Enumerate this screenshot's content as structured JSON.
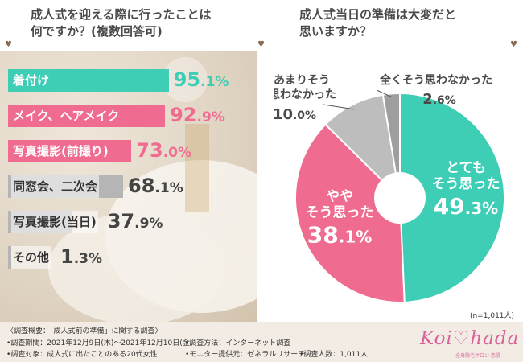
{
  "left_title": "成人式を迎える際に行ったことは\n何ですか？(複数回答可)",
  "right_title": "成人式当日の準備は大変だと\n思いますか？",
  "sample": "(n=1,011人)",
  "chart_data": [
    {
      "type": "bar",
      "orientation": "horizontal",
      "title": "成人式を迎える際に行ったことは何ですか？(複数回答可)",
      "categories": [
        "着付け",
        "メイク、ヘアメイク",
        "写真撮影(前撮り)",
        "同窓会、二次会",
        "写真撮影(当日)",
        "その他"
      ],
      "values": [
        95.1,
        92.9,
        73.0,
        68.1,
        37.9,
        1.3
      ],
      "value_labels": [
        [
          "95",
          ".1%"
        ],
        [
          "92",
          ".9%"
        ],
        [
          "73",
          ".0%"
        ],
        [
          "68",
          ".1%"
        ],
        [
          "37",
          ".9%"
        ],
        [
          "1",
          ".3%"
        ]
      ],
      "colors": [
        "#3ecdb5",
        "#f06b90",
        "#f06b90",
        "#b5b5b5",
        "#b5b5b5",
        "#b5b5b5"
      ],
      "label_colors": [
        "#ffffff",
        "#ffffff",
        "#ffffff",
        "#333333",
        "#333333",
        "#333333"
      ],
      "value_colors": [
        "#3ecdb5",
        "#f06b90",
        "#f06b90",
        "#444444",
        "#444444",
        "#444444"
      ],
      "xlim": [
        0,
        100
      ]
    },
    {
      "type": "pie",
      "title": "成人式当日の準備は大変だと思いますか？",
      "categories": [
        "とてもそう思った",
        "ややそう思った",
        "あまりそう思わなかった",
        "全くそう思わなかった"
      ],
      "values": [
        49.3,
        38.1,
        10.0,
        2.6
      ],
      "slice_labels": [
        [
          "とても",
          "そう思った"
        ],
        [
          "やや",
          "そう思った"
        ],
        [
          "あまりそう",
          "思わなかった"
        ],
        [
          "全くそう思わなかった"
        ]
      ],
      "value_labels": [
        [
          "49",
          ".3%"
        ],
        [
          "38",
          ".1%"
        ],
        [
          "10",
          ".0%"
        ],
        [
          "2",
          ".6%"
        ]
      ],
      "colors": [
        "#3ecdb5",
        "#f06b90",
        "#bdbdbd",
        "#9e9e9e"
      ],
      "start_angle_deg": 0,
      "direction": "clockwise"
    }
  ],
  "footer": {
    "overview": "〈調査概要：「成人式前の準備」に関する調査〉",
    "period": "•調査期間：2021年12月9日(木)～2021年12月10日(金)",
    "target": "•調査対象：成人式に出たことのある20代女性",
    "method": "•調査方法：インターネット調査",
    "provider": "•モニター提供元：ゼネラルリサーチ",
    "count": "•調査人数：1,011人",
    "logo": "Koi♡hada",
    "logo_sub": "全身脱毛サロン 恋肌"
  }
}
